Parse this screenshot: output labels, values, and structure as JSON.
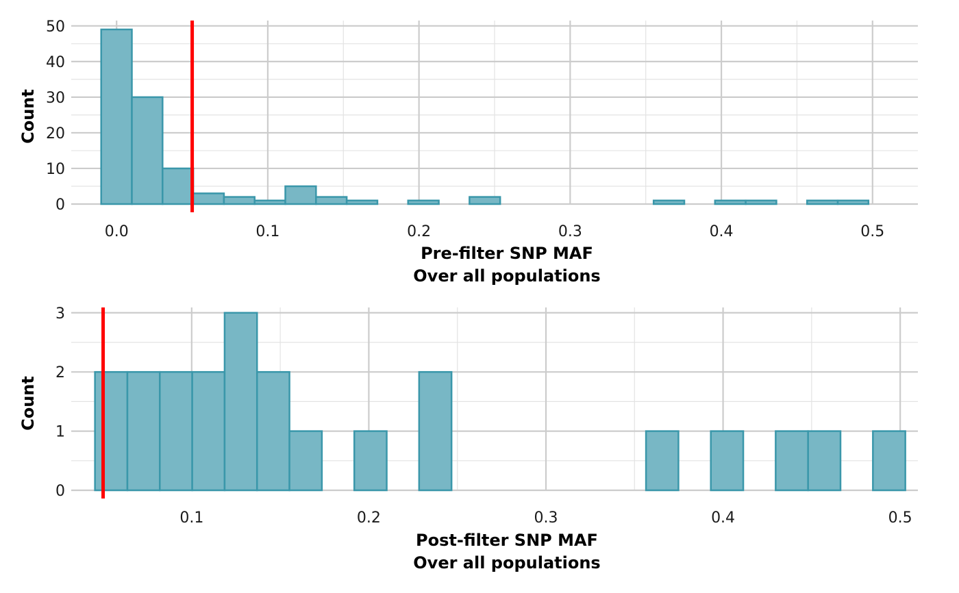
{
  "colors": {
    "bar_fill": "#78b7c5",
    "bar_stroke": "#3a97aa",
    "threshold": "#ff0000",
    "grid_major": "#cccccc",
    "grid_minor": "#e3e3e3"
  },
  "chart_data": [
    {
      "type": "bar",
      "chart_kind": "histogram",
      "xlabel": "Pre-filter SNP MAF",
      "xlabel_line2": "Over all populations",
      "ylabel": "Count",
      "xlim": [
        -0.03,
        0.53
      ],
      "ylim": [
        0,
        50
      ],
      "x_ticks": [
        0.0,
        0.1,
        0.2,
        0.3,
        0.4,
        0.5
      ],
      "x_tick_labels": [
        "0.0",
        "0.1",
        "0.2",
        "0.3",
        "0.4",
        "0.5"
      ],
      "y_ticks": [
        0,
        10,
        20,
        30,
        40,
        50
      ],
      "y_tick_labels": [
        "0",
        "10",
        "20",
        "30",
        "40",
        "50"
      ],
      "grid": true,
      "bin_width": 0.0203,
      "bins": [
        {
          "x0": -0.0102,
          "x1": 0.0101,
          "count": 49
        },
        {
          "x0": 0.0101,
          "x1": 0.0304,
          "count": 30
        },
        {
          "x0": 0.0304,
          "x1": 0.0507,
          "count": 10
        },
        {
          "x0": 0.0507,
          "x1": 0.071,
          "count": 3
        },
        {
          "x0": 0.071,
          "x1": 0.0913,
          "count": 2
        },
        {
          "x0": 0.0913,
          "x1": 0.1116,
          "count": 1
        },
        {
          "x0": 0.1116,
          "x1": 0.1319,
          "count": 5
        },
        {
          "x0": 0.1319,
          "x1": 0.1522,
          "count": 2
        },
        {
          "x0": 0.1522,
          "x1": 0.1725,
          "count": 1
        },
        {
          "x0": 0.1725,
          "x1": 0.1928,
          "count": 0
        },
        {
          "x0": 0.1928,
          "x1": 0.2131,
          "count": 1
        },
        {
          "x0": 0.2131,
          "x1": 0.2334,
          "count": 0
        },
        {
          "x0": 0.2334,
          "x1": 0.2537,
          "count": 2
        },
        {
          "x0": 0.2537,
          "x1": 0.274,
          "count": 0
        },
        {
          "x0": 0.274,
          "x1": 0.2943,
          "count": 0
        },
        {
          "x0": 0.2943,
          "x1": 0.3146,
          "count": 0
        },
        {
          "x0": 0.3146,
          "x1": 0.3349,
          "count": 0
        },
        {
          "x0": 0.3349,
          "x1": 0.3552,
          "count": 0
        },
        {
          "x0": 0.3552,
          "x1": 0.3755,
          "count": 1
        },
        {
          "x0": 0.3755,
          "x1": 0.3958,
          "count": 0
        },
        {
          "x0": 0.3958,
          "x1": 0.4161,
          "count": 1
        },
        {
          "x0": 0.4161,
          "x1": 0.4364,
          "count": 1
        },
        {
          "x0": 0.4364,
          "x1": 0.4567,
          "count": 0
        },
        {
          "x0": 0.4567,
          "x1": 0.477,
          "count": 1
        },
        {
          "x0": 0.477,
          "x1": 0.4973,
          "count": 1
        }
      ],
      "threshold_x": 0.05
    },
    {
      "type": "bar",
      "chart_kind": "histogram",
      "xlabel": "Post-filter SNP MAF",
      "xlabel_line2": "Over all populations",
      "ylabel": "Count",
      "xlim": [
        0.032,
        0.51
      ],
      "ylim": [
        0,
        3
      ],
      "x_ticks": [
        0.1,
        0.2,
        0.3,
        0.4,
        0.5
      ],
      "x_tick_labels": [
        "0.1",
        "0.2",
        "0.3",
        "0.4",
        "0.5"
      ],
      "y_ticks": [
        0,
        1,
        2,
        3
      ],
      "y_tick_labels": [
        "0",
        "1",
        "2",
        "3"
      ],
      "grid": true,
      "bin_width": 0.0183,
      "bins": [
        {
          "x0": 0.0454,
          "x1": 0.0637,
          "count": 2
        },
        {
          "x0": 0.0637,
          "x1": 0.082,
          "count": 2
        },
        {
          "x0": 0.082,
          "x1": 0.1003,
          "count": 2
        },
        {
          "x0": 0.1003,
          "x1": 0.1186,
          "count": 2
        },
        {
          "x0": 0.1186,
          "x1": 0.1369,
          "count": 3
        },
        {
          "x0": 0.1369,
          "x1": 0.1552,
          "count": 2
        },
        {
          "x0": 0.1552,
          "x1": 0.1735,
          "count": 1
        },
        {
          "x0": 0.1735,
          "x1": 0.1918,
          "count": 0
        },
        {
          "x0": 0.1918,
          "x1": 0.2101,
          "count": 1
        },
        {
          "x0": 0.2101,
          "x1": 0.2284,
          "count": 0
        },
        {
          "x0": 0.2284,
          "x1": 0.2467,
          "count": 2
        },
        {
          "x0": 0.2467,
          "x1": 0.265,
          "count": 0
        },
        {
          "x0": 0.265,
          "x1": 0.2833,
          "count": 0
        },
        {
          "x0": 0.2833,
          "x1": 0.3016,
          "count": 0
        },
        {
          "x0": 0.3016,
          "x1": 0.3199,
          "count": 0
        },
        {
          "x0": 0.3199,
          "x1": 0.3382,
          "count": 0
        },
        {
          "x0": 0.3382,
          "x1": 0.3565,
          "count": 0
        },
        {
          "x0": 0.3565,
          "x1": 0.3748,
          "count": 1
        },
        {
          "x0": 0.3748,
          "x1": 0.3931,
          "count": 0
        },
        {
          "x0": 0.3931,
          "x1": 0.4114,
          "count": 1
        },
        {
          "x0": 0.4114,
          "x1": 0.4297,
          "count": 0
        },
        {
          "x0": 0.4297,
          "x1": 0.448,
          "count": 1
        },
        {
          "x0": 0.448,
          "x1": 0.4663,
          "count": 1
        },
        {
          "x0": 0.4663,
          "x1": 0.4846,
          "count": 0
        },
        {
          "x0": 0.4846,
          "x1": 0.5029,
          "count": 1
        }
      ],
      "threshold_x": 0.05
    }
  ]
}
